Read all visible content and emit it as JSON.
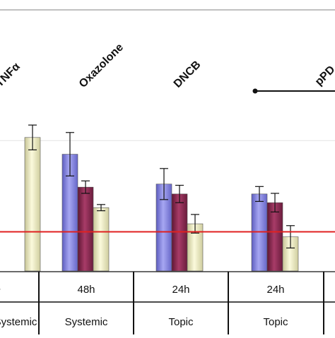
{
  "chart_data": {
    "type": "bar",
    "title": "",
    "xlabel": "",
    "ylabel": "",
    "grid": true,
    "ylim": [
      0,
      250
    ],
    "reference_line": {
      "value": 63,
      "color": "#e02020"
    },
    "groups": [
      {
        "label": "TNFα",
        "time": "",
        "route": "Systemic",
        "values": [
          null,
          null,
          215
        ],
        "errors": [
          null,
          null,
          20
        ]
      },
      {
        "label": "Oxazolone",
        "time": "48h",
        "route": "Systemic",
        "values": [
          188,
          135,
          102
        ],
        "errors": [
          35,
          10,
          5
        ]
      },
      {
        "label": "DNCB",
        "time": "24h",
        "route": "Topic",
        "values": [
          140,
          124,
          76
        ],
        "errors": [
          25,
          14,
          15
        ]
      },
      {
        "label": "",
        "time": "24h",
        "route": "Topic",
        "values": [
          124,
          110,
          55
        ],
        "errors": [
          12,
          15,
          18
        ]
      }
    ],
    "partial_labels": {
      "left_group": "TNFα",
      "right_group": "pPD"
    },
    "series_colors": [
      "#8888e0",
      "#8c2a52",
      "#ecebc0"
    ]
  }
}
